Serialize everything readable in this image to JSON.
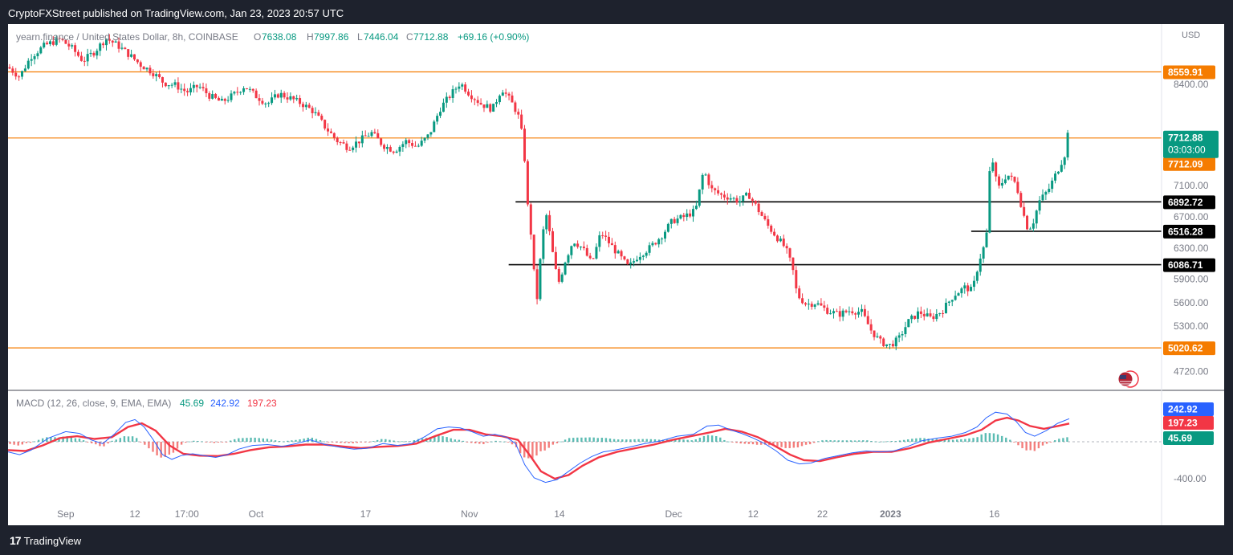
{
  "header": {
    "published_text": "CryptoFXStreet published on TradingView.com, Jan 23, 2023 20:57 UTC"
  },
  "footer": {
    "brand": "TradingView",
    "logo_glyph": "17"
  },
  "chart_data": {
    "type": "candlestick",
    "symbol_text": "yearn.finance / United States Dollar, 8h, COINBASE",
    "ohlc": {
      "open_label": "O",
      "open": "7638.08",
      "high_label": "H",
      "high": "7997.86",
      "low_label": "L",
      "low": "7446.04",
      "close_label": "C",
      "close": "7712.88",
      "change": "+69.16 (+0.90%)"
    },
    "currency": "USD",
    "y_ticks": [
      "8400.00",
      "7100.00",
      "6700.00",
      "6300.00",
      "5900.00",
      "5600.00",
      "5300.00",
      "4720.00"
    ],
    "y_tick_values": [
      8400,
      7100,
      6700,
      6300,
      5900,
      5600,
      5300,
      4720
    ],
    "x_ticks": [
      {
        "label": "Sep",
        "t": 0.05
      },
      {
        "label": "12",
        "t": 0.11
      },
      {
        "label": "17:00",
        "t": 0.155
      },
      {
        "label": "Oct",
        "t": 0.215
      },
      {
        "label": "17",
        "t": 0.31
      },
      {
        "label": "Nov",
        "t": 0.4
      },
      {
        "label": "14",
        "t": 0.478
      },
      {
        "label": "Dec",
        "t": 0.577
      },
      {
        "label": "12",
        "t": 0.646
      },
      {
        "label": "22",
        "t": 0.706
      },
      {
        "label": "2023",
        "t": 0.765
      },
      {
        "label": "16",
        "t": 0.855
      }
    ],
    "horizontal_levels": [
      {
        "value": 8559.91,
        "label": "8559.91",
        "color": "#f57c00",
        "bg": "#f57c00",
        "fg": "#ffffff",
        "start": 0.0
      },
      {
        "value": 7712.09,
        "label": "7712.09",
        "color": "#f57c00",
        "bg": "#f57c00",
        "fg": "#ffffff",
        "start": 0.0
      },
      {
        "value": 6892.72,
        "label": "6892.72",
        "color": "#000000",
        "bg": "#000000",
        "fg": "#ffffff",
        "start": 0.44
      },
      {
        "value": 6516.28,
        "label": "6516.28",
        "color": "#000000",
        "bg": "#000000",
        "fg": "#ffffff",
        "start": 0.835
      },
      {
        "value": 6086.71,
        "label": "6086.71",
        "color": "#000000",
        "bg": "#000000",
        "fg": "#ffffff",
        "start": 0.434
      },
      {
        "value": 5020.62,
        "label": "5020.62",
        "color": "#f57c00",
        "bg": "#f57c00",
        "fg": "#ffffff",
        "start": 0.0
      }
    ],
    "last_price": {
      "value": 7712.88,
      "label": "7712.88",
      "countdown": "03:03:00",
      "bg": "#089981"
    },
    "price_path": [
      [
        0.0,
        8620
      ],
      [
        0.01,
        8500
      ],
      [
        0.02,
        8760
      ],
      [
        0.032,
        8900
      ],
      [
        0.045,
        8980
      ],
      [
        0.055,
        8870
      ],
      [
        0.065,
        8700
      ],
      [
        0.075,
        8820
      ],
      [
        0.085,
        8990
      ],
      [
        0.095,
        8900
      ],
      [
        0.105,
        8780
      ],
      [
        0.115,
        8650
      ],
      [
        0.125,
        8560
      ],
      [
        0.135,
        8420
      ],
      [
        0.145,
        8390
      ],
      [
        0.155,
        8300
      ],
      [
        0.165,
        8380
      ],
      [
        0.175,
        8250
      ],
      [
        0.185,
        8170
      ],
      [
        0.195,
        8260
      ],
      [
        0.205,
        8380
      ],
      [
        0.215,
        8250
      ],
      [
        0.225,
        8150
      ],
      [
        0.235,
        8280
      ],
      [
        0.245,
        8220
      ],
      [
        0.255,
        8150
      ],
      [
        0.265,
        8050
      ],
      [
        0.275,
        7850
      ],
      [
        0.285,
        7680
      ],
      [
        0.295,
        7590
      ],
      [
        0.305,
        7680
      ],
      [
        0.315,
        7780
      ],
      [
        0.325,
        7620
      ],
      [
        0.335,
        7550
      ],
      [
        0.345,
        7670
      ],
      [
        0.355,
        7600
      ],
      [
        0.365,
        7750
      ],
      [
        0.375,
        8100
      ],
      [
        0.385,
        8290
      ],
      [
        0.392,
        8420
      ],
      [
        0.4,
        8280
      ],
      [
        0.41,
        8150
      ],
      [
        0.42,
        8080
      ],
      [
        0.428,
        8350
      ],
      [
        0.436,
        8180
      ],
      [
        0.442,
        8020
      ],
      [
        0.447,
        7650
      ],
      [
        0.45,
        6900
      ],
      [
        0.454,
        6400
      ],
      [
        0.458,
        5550
      ],
      [
        0.462,
        6250
      ],
      [
        0.466,
        6780
      ],
      [
        0.47,
        6450
      ],
      [
        0.474,
        6050
      ],
      [
        0.478,
        5850
      ],
      [
        0.482,
        6100
      ],
      [
        0.49,
        6400
      ],
      [
        0.498,
        6300
      ],
      [
        0.506,
        6100
      ],
      [
        0.514,
        6500
      ],
      [
        0.522,
        6350
      ],
      [
        0.53,
        6200
      ],
      [
        0.538,
        6050
      ],
      [
        0.546,
        6200
      ],
      [
        0.556,
        6300
      ],
      [
        0.566,
        6450
      ],
      [
        0.576,
        6650
      ],
      [
        0.586,
        6700
      ],
      [
        0.596,
        6780
      ],
      [
        0.603,
        7300
      ],
      [
        0.61,
        7050
      ],
      [
        0.618,
        6980
      ],
      [
        0.626,
        6950
      ],
      [
        0.634,
        6900
      ],
      [
        0.642,
        6990
      ],
      [
        0.65,
        6800
      ],
      [
        0.658,
        6600
      ],
      [
        0.666,
        6450
      ],
      [
        0.674,
        6300
      ],
      [
        0.68,
        6050
      ],
      [
        0.684,
        5700
      ],
      [
        0.692,
        5580
      ],
      [
        0.7,
        5600
      ],
      [
        0.71,
        5500
      ],
      [
        0.72,
        5450
      ],
      [
        0.73,
        5500
      ],
      [
        0.74,
        5480
      ],
      [
        0.748,
        5250
      ],
      [
        0.756,
        5100
      ],
      [
        0.764,
        5050
      ],
      [
        0.772,
        5130
      ],
      [
        0.78,
        5350
      ],
      [
        0.79,
        5480
      ],
      [
        0.8,
        5400
      ],
      [
        0.81,
        5500
      ],
      [
        0.82,
        5700
      ],
      [
        0.83,
        5800
      ],
      [
        0.836,
        5750
      ],
      [
        0.842,
        6150
      ],
      [
        0.848,
        6400
      ],
      [
        0.852,
        7550
      ],
      [
        0.858,
        7050
      ],
      [
        0.866,
        7250
      ],
      [
        0.874,
        7120
      ],
      [
        0.88,
        6750
      ],
      [
        0.884,
        6550
      ],
      [
        0.888,
        6600
      ],
      [
        0.894,
        6900
      ],
      [
        0.902,
        7050
      ],
      [
        0.91,
        7300
      ],
      [
        0.916,
        7500
      ],
      [
        0.92,
        7900
      ]
    ],
    "macd": {
      "title": "MACD (12, 26, close, 9, EMA, EMA)",
      "values": [
        "45.69",
        "242.92",
        "197.23"
      ],
      "value_colors": [
        "#089981",
        "#2962ff",
        "#f23645"
      ],
      "tick_bottom": "-400.00",
      "macd_color": "#2962ff",
      "signal_color": "#f23645",
      "macd_path": [
        [
          0.0,
          -110
        ],
        [
          0.01,
          -140
        ],
        [
          0.02,
          -90
        ],
        [
          0.035,
          40
        ],
        [
          0.05,
          110
        ],
        [
          0.062,
          90
        ],
        [
          0.072,
          20
        ],
        [
          0.082,
          -20
        ],
        [
          0.092,
          80
        ],
        [
          0.102,
          210
        ],
        [
          0.11,
          240
        ],
        [
          0.118,
          160
        ],
        [
          0.126,
          20
        ],
        [
          0.134,
          -140
        ],
        [
          0.142,
          -190
        ],
        [
          0.15,
          -150
        ],
        [
          0.16,
          -130
        ],
        [
          0.17,
          -150
        ],
        [
          0.18,
          -170
        ],
        [
          0.19,
          -140
        ],
        [
          0.2,
          -80
        ],
        [
          0.212,
          -40
        ],
        [
          0.225,
          -30
        ],
        [
          0.238,
          -50
        ],
        [
          0.25,
          -20
        ],
        [
          0.262,
          20
        ],
        [
          0.275,
          -30
        ],
        [
          0.288,
          -60
        ],
        [
          0.3,
          -80
        ],
        [
          0.312,
          -70
        ],
        [
          0.325,
          -20
        ],
        [
          0.338,
          -40
        ],
        [
          0.35,
          -20
        ],
        [
          0.362,
          60
        ],
        [
          0.372,
          140
        ],
        [
          0.382,
          160
        ],
        [
          0.392,
          150
        ],
        [
          0.402,
          110
        ],
        [
          0.412,
          60
        ],
        [
          0.422,
          80
        ],
        [
          0.432,
          50
        ],
        [
          0.44,
          -20
        ],
        [
          0.448,
          -250
        ],
        [
          0.456,
          -390
        ],
        [
          0.466,
          -440
        ],
        [
          0.476,
          -410
        ],
        [
          0.486,
          -320
        ],
        [
          0.496,
          -230
        ],
        [
          0.506,
          -160
        ],
        [
          0.516,
          -110
        ],
        [
          0.526,
          -90
        ],
        [
          0.538,
          -60
        ],
        [
          0.552,
          -20
        ],
        [
          0.566,
          10
        ],
        [
          0.58,
          60
        ],
        [
          0.594,
          80
        ],
        [
          0.606,
          170
        ],
        [
          0.616,
          180
        ],
        [
          0.626,
          130
        ],
        [
          0.636,
          90
        ],
        [
          0.646,
          40
        ],
        [
          0.656,
          -20
        ],
        [
          0.666,
          -100
        ],
        [
          0.676,
          -200
        ],
        [
          0.686,
          -240
        ],
        [
          0.696,
          -230
        ],
        [
          0.708,
          -180
        ],
        [
          0.72,
          -150
        ],
        [
          0.732,
          -120
        ],
        [
          0.744,
          -100
        ],
        [
          0.756,
          -110
        ],
        [
          0.768,
          -100
        ],
        [
          0.78,
          -50
        ],
        [
          0.792,
          10
        ],
        [
          0.806,
          40
        ],
        [
          0.818,
          60
        ],
        [
          0.83,
          100
        ],
        [
          0.84,
          160
        ],
        [
          0.848,
          260
        ],
        [
          0.856,
          320
        ],
        [
          0.866,
          300
        ],
        [
          0.874,
          220
        ],
        [
          0.882,
          100
        ],
        [
          0.89,
          60
        ],
        [
          0.9,
          120
        ],
        [
          0.91,
          200
        ],
        [
          0.92,
          250
        ]
      ],
      "signal_path": [
        [
          0.0,
          -90
        ],
        [
          0.015,
          -100
        ],
        [
          0.03,
          -40
        ],
        [
          0.045,
          40
        ],
        [
          0.06,
          60
        ],
        [
          0.075,
          30
        ],
        [
          0.09,
          50
        ],
        [
          0.104,
          160
        ],
        [
          0.116,
          200
        ],
        [
          0.128,
          120
        ],
        [
          0.14,
          -40
        ],
        [
          0.152,
          -130
        ],
        [
          0.166,
          -150
        ],
        [
          0.182,
          -155
        ],
        [
          0.196,
          -130
        ],
        [
          0.21,
          -90
        ],
        [
          0.226,
          -60
        ],
        [
          0.242,
          -50
        ],
        [
          0.258,
          -30
        ],
        [
          0.274,
          -30
        ],
        [
          0.29,
          -50
        ],
        [
          0.306,
          -70
        ],
        [
          0.322,
          -55
        ],
        [
          0.338,
          -45
        ],
        [
          0.354,
          -20
        ],
        [
          0.37,
          60
        ],
        [
          0.386,
          130
        ],
        [
          0.4,
          130
        ],
        [
          0.414,
          80
        ],
        [
          0.428,
          60
        ],
        [
          0.442,
          20
        ],
        [
          0.452,
          -140
        ],
        [
          0.462,
          -320
        ],
        [
          0.474,
          -400
        ],
        [
          0.486,
          -360
        ],
        [
          0.498,
          -260
        ],
        [
          0.512,
          -170
        ],
        [
          0.528,
          -110
        ],
        [
          0.544,
          -70
        ],
        [
          0.56,
          -30
        ],
        [
          0.576,
          20
        ],
        [
          0.592,
          60
        ],
        [
          0.608,
          100
        ],
        [
          0.622,
          140
        ],
        [
          0.636,
          110
        ],
        [
          0.65,
          50
        ],
        [
          0.664,
          -40
        ],
        [
          0.678,
          -140
        ],
        [
          0.69,
          -200
        ],
        [
          0.704,
          -210
        ],
        [
          0.718,
          -170
        ],
        [
          0.734,
          -130
        ],
        [
          0.75,
          -110
        ],
        [
          0.766,
          -110
        ],
        [
          0.782,
          -70
        ],
        [
          0.798,
          -10
        ],
        [
          0.814,
          30
        ],
        [
          0.83,
          70
        ],
        [
          0.844,
          130
        ],
        [
          0.856,
          230
        ],
        [
          0.866,
          260
        ],
        [
          0.876,
          230
        ],
        [
          0.886,
          170
        ],
        [
          0.898,
          140
        ],
        [
          0.91,
          170
        ],
        [
          0.92,
          197
        ]
      ]
    }
  }
}
